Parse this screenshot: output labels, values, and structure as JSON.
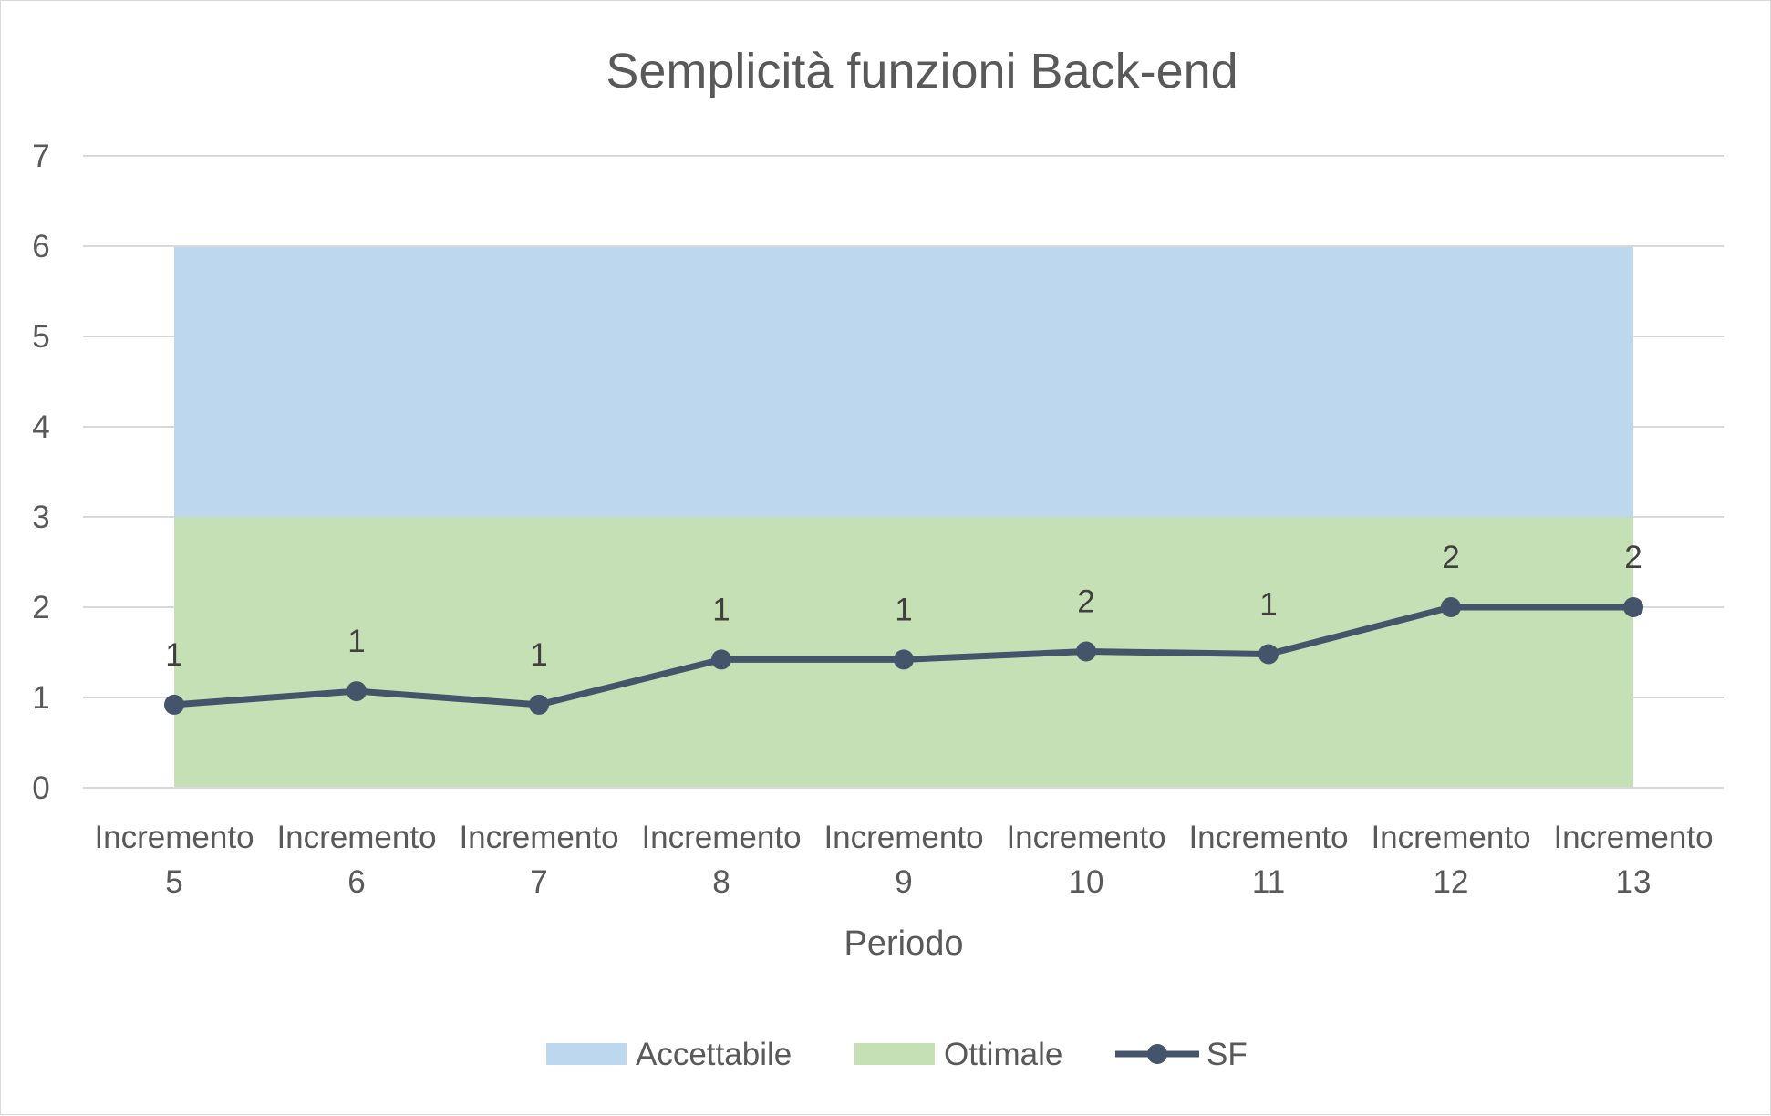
{
  "chart_data": {
    "type": "line",
    "title": "Semplicità funzioni Back-end",
    "xlabel": "Periodo",
    "ylabel": "",
    "ylim": [
      0,
      7
    ],
    "yticks": [
      0,
      1,
      2,
      3,
      4,
      5,
      6,
      7
    ],
    "grid": true,
    "legend_position": "bottom",
    "categories": [
      [
        "Incremento",
        "5"
      ],
      [
        "Incremento",
        "6"
      ],
      [
        "Incremento",
        "7"
      ],
      [
        "Incremento",
        "8"
      ],
      [
        "Incremento",
        "9"
      ],
      [
        "Incremento",
        "10"
      ],
      [
        "Incremento",
        "11"
      ],
      [
        "Incremento",
        "12"
      ],
      [
        "Incremento",
        "13"
      ]
    ],
    "bands": [
      {
        "name": "Accettabile",
        "from": 3,
        "to": 6,
        "color": "#bdd7ee"
      },
      {
        "name": "Ottimale",
        "from": 0,
        "to": 3,
        "color": "#c5e0b4"
      }
    ],
    "series": [
      {
        "name": "SF",
        "color": "#44546a",
        "values": [
          0.92,
          1.07,
          0.92,
          1.42,
          1.42,
          1.51,
          1.48,
          2.0,
          2.0
        ],
        "labels": [
          "1",
          "1",
          "1",
          "1",
          "1",
          "2",
          "1",
          "2",
          "2"
        ]
      }
    ]
  }
}
